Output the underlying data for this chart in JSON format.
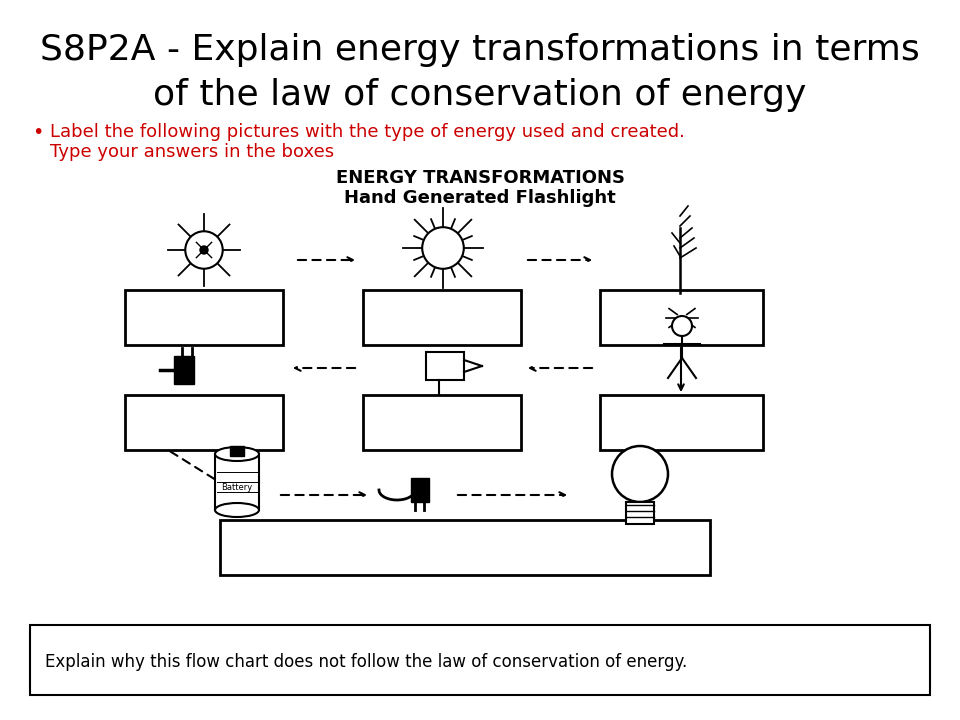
{
  "title_line1": "S8P2A - Explain energy transformations in terms",
  "title_line2": "of the law of conservation of energy",
  "bullet_line1": "Label the following pictures with the type of energy used and created.",
  "bullet_line2": "Type your answers in the boxes",
  "diagram_title1": "ENERGY TRANSFORMATIONS",
  "diagram_title2": "Hand Generated Flashlight",
  "footer_text": "Explain why this flow chart does not follow the law of conservation of energy.",
  "bg_color": "#ffffff",
  "title_color": "#000000",
  "red_color": "#cc0000"
}
